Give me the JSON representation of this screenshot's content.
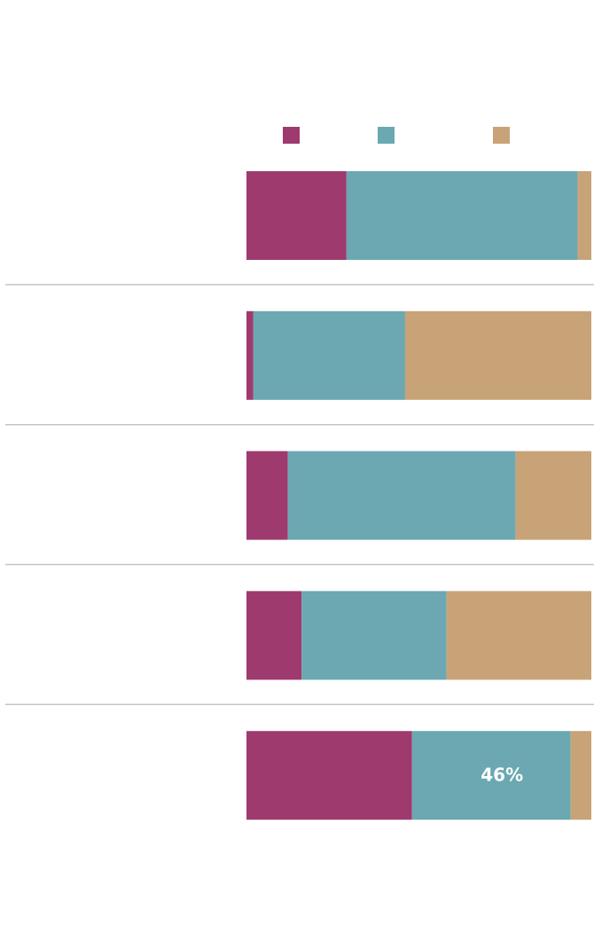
{
  "chart_data": {
    "type": "stacked-bar",
    "orientation": "horizontal",
    "categories": [
      null,
      null,
      null,
      null,
      null
    ],
    "series": [
      {
        "color": "#9e3a6e",
        "values": [
          29,
          2,
          12,
          16,
          48
        ]
      },
      {
        "color": "#6ba8b1",
        "values": [
          67,
          44,
          66,
          42,
          46
        ],
        "value_labels": [
          null,
          null,
          null,
          null,
          "46%"
        ]
      },
      {
        "color": "#c8a378",
        "values": [
          4,
          54,
          22,
          42,
          6
        ]
      }
    ],
    "xlim": [
      0,
      100
    ]
  }
}
